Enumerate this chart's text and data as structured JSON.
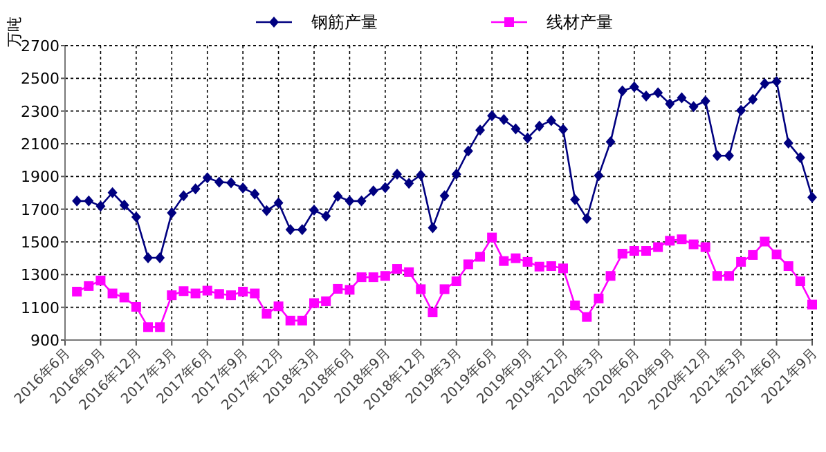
{
  "chart_data": {
    "type": "line",
    "ylabel": "万吨",
    "grid": true,
    "legend": "top",
    "x": [
      "2016-07",
      "2016-08",
      "2016-09",
      "2016-10",
      "2016-11",
      "2016-12",
      "2017-01",
      "2017-02",
      "2017-03",
      "2017-04",
      "2017-05",
      "2017-06",
      "2017-07",
      "2017-08",
      "2017-09",
      "2017-10",
      "2017-11",
      "2017-12",
      "2018-01",
      "2018-02",
      "2018-03",
      "2018-04",
      "2018-05",
      "2018-06",
      "2018-07",
      "2018-08",
      "2018-09",
      "2018-10",
      "2018-11",
      "2018-12",
      "2019-01",
      "2019-02",
      "2019-03",
      "2019-04",
      "2019-05",
      "2019-06",
      "2019-07",
      "2019-08",
      "2019-09",
      "2019-10",
      "2019-11",
      "2019-12",
      "2020-01",
      "2020-02",
      "2020-03",
      "2020-04",
      "2020-05",
      "2020-06",
      "2020-07",
      "2020-08",
      "2020-09",
      "2020-10",
      "2020-11",
      "2020-12",
      "2021-01",
      "2021-02",
      "2021-03",
      "2021-04",
      "2021-05",
      "2021-06",
      "2021-07",
      "2021-08",
      "2021-09"
    ],
    "xlim": [
      "2016-06",
      "2021-09"
    ],
    "xticks": [
      {
        "value": "2016-06",
        "label": "2016年6月"
      },
      {
        "value": "2016-09",
        "label": "2016年9月"
      },
      {
        "value": "2016-12",
        "label": "2016年12月"
      },
      {
        "value": "2017-03",
        "label": "2017年3月"
      },
      {
        "value": "2017-06",
        "label": "2017年6月"
      },
      {
        "value": "2017-09",
        "label": "2017年9月"
      },
      {
        "value": "2017-12",
        "label": "2017年12月"
      },
      {
        "value": "2018-03",
        "label": "2018年3月"
      },
      {
        "value": "2018-06",
        "label": "2018年6月"
      },
      {
        "value": "2018-09",
        "label": "2018年9月"
      },
      {
        "value": "2018-12",
        "label": "2018年12月"
      },
      {
        "value": "2019-03",
        "label": "2019年3月"
      },
      {
        "value": "2019-06",
        "label": "2019年6月"
      },
      {
        "value": "2019-09",
        "label": "2019年9月"
      },
      {
        "value": "2019-12",
        "label": "2019年12月"
      },
      {
        "value": "2020-03",
        "label": "2020年3月"
      },
      {
        "value": "2020-06",
        "label": "2020年6月"
      },
      {
        "value": "2020-09",
        "label": "2020年9月"
      },
      {
        "value": "2020-12",
        "label": "2020年12月"
      },
      {
        "value": "2021-03",
        "label": "2021年3月"
      },
      {
        "value": "2021-06",
        "label": "2021年6月"
      },
      {
        "value": "2021-09",
        "label": "2021年9月"
      }
    ],
    "ylim": [
      900,
      2700
    ],
    "yticks": [
      900,
      1100,
      1300,
      1500,
      1700,
      1900,
      2100,
      2300,
      2500,
      2700
    ],
    "series": [
      {
        "name": "钢筋产量",
        "color": "#000080",
        "marker": "diamond",
        "values": [
          1750,
          1750,
          1719,
          1801,
          1725,
          1652,
          1403,
          1403,
          1677,
          1782,
          1824,
          1892,
          1866,
          1861,
          1830,
          1793,
          1691,
          1739,
          1575,
          1575,
          1694,
          1657,
          1779,
          1750,
          1750,
          1812,
          1832,
          1914,
          1858,
          1909,
          1587,
          1782,
          1914,
          2056,
          2183,
          2271,
          2248,
          2191,
          2135,
          2208,
          2242,
          2188,
          1759,
          1643,
          1906,
          2112,
          2423,
          2448,
          2392,
          2412,
          2344,
          2381,
          2327,
          2361,
          2027,
          2027,
          2304,
          2372,
          2468,
          2480,
          2104,
          2016,
          1773
        ]
      },
      {
        "name": "线材产量",
        "color": "#ff00ff",
        "marker": "square",
        "values": [
          1196,
          1230,
          1264,
          1185,
          1160,
          1103,
          979,
          979,
          1174,
          1199,
          1185,
          1202,
          1182,
          1174,
          1196,
          1185,
          1061,
          1106,
          1019,
          1019,
          1126,
          1137,
          1213,
          1207,
          1284,
          1284,
          1292,
          1335,
          1315,
          1211,
          1069,
          1211,
          1259,
          1363,
          1409,
          1527,
          1383,
          1400,
          1378,
          1349,
          1352,
          1338,
          1112,
          1041,
          1154,
          1292,
          1428,
          1445,
          1445,
          1468,
          1507,
          1516,
          1485,
          1468,
          1292,
          1292,
          1378,
          1420,
          1502,
          1423,
          1352,
          1259,
          1117
        ]
      }
    ]
  }
}
